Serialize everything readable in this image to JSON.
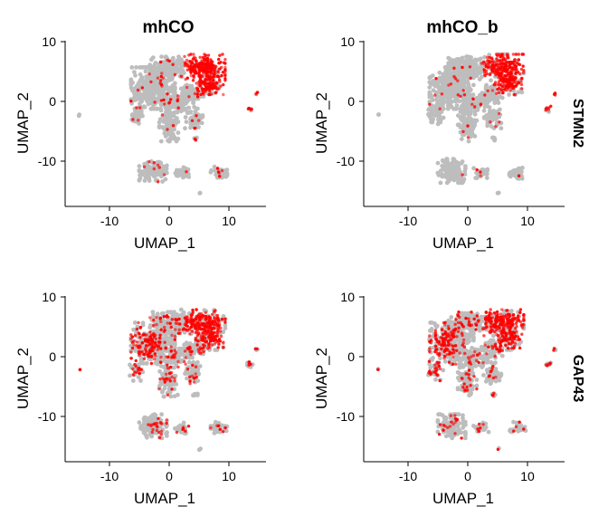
{
  "colors": {
    "background": "#ffffff",
    "cell_low": "#bdbdbd",
    "cell_high": "#ff0000",
    "axis": "#000000"
  },
  "chart_data": {
    "type": "scatter",
    "layout": "grid 2x2 (UMAP feature plots)",
    "columns": [
      "mhCO",
      "mhCO_b"
    ],
    "rows": [
      "STMN2",
      "GAP43"
    ],
    "xlabel": "UMAP_1",
    "ylabel": "UMAP_2",
    "x_ticks": [
      -10,
      0,
      10
    ],
    "y_ticks": [
      -10,
      0,
      10
    ],
    "xlim": [
      -17.5,
      14.5
    ],
    "ylim": [
      -17.5,
      10.5
    ],
    "color_scale": [
      "#bdbdbd",
      "#ff0000"
    ],
    "clusters": [
      {
        "name": "central mass",
        "cx": -3.5,
        "cy": 2.5,
        "rx": 3.5,
        "ry": 3.5,
        "n": 360
      },
      {
        "name": "upper arc",
        "cx": -1.0,
        "cy": 6.0,
        "rx": 3.0,
        "ry": 1.8,
        "n": 140
      },
      {
        "name": "top right lobe",
        "cx": 4.5,
        "cy": 6.0,
        "rx": 3.5,
        "ry": 2.2,
        "n": 240
      },
      {
        "name": "right lobe",
        "cx": 5.5,
        "cy": 3.2,
        "rx": 2.2,
        "ry": 1.8,
        "n": 110
      },
      {
        "name": "middle right",
        "cx": 2.8,
        "cy": 1.5,
        "rx": 1.8,
        "ry": 1.5,
        "n": 60
      },
      {
        "name": "center stream",
        "cx": 0.0,
        "cy": 0.0,
        "rx": 2.2,
        "ry": 1.6,
        "n": 90
      },
      {
        "name": "lower arm",
        "cx": -1.0,
        "cy": -4.0,
        "rx": 1.5,
        "ry": 2.5,
        "n": 90
      },
      {
        "name": "lower right arm",
        "cx": 3.0,
        "cy": -2.5,
        "rx": 1.4,
        "ry": 1.8,
        "n": 60
      },
      {
        "name": "left arm",
        "cx": -6.0,
        "cy": -2.0,
        "rx": 1.2,
        "ry": 1.8,
        "n": 40
      },
      {
        "name": "bottom left blob",
        "cx": -3.5,
        "cy": -11.5,
        "rx": 2.2,
        "ry": 2.0,
        "n": 120
      },
      {
        "name": "bottom mid blob",
        "cx": 1.2,
        "cy": -11.8,
        "rx": 1.2,
        "ry": 0.9,
        "n": 35
      },
      {
        "name": "bottom right blob",
        "cx": 7.0,
        "cy": -11.8,
        "rx": 1.3,
        "ry": 1.0,
        "n": 35
      },
      {
        "name": "far right dot",
        "cx": 12.0,
        "cy": -1.0,
        "rx": 0.5,
        "ry": 0.5,
        "n": 10
      },
      {
        "name": "far right small",
        "cx": 13.0,
        "cy": 1.5,
        "rx": 0.3,
        "ry": 0.3,
        "n": 4
      },
      {
        "name": "lower mid spot",
        "cx": 3.2,
        "cy": -6.0,
        "rx": 0.4,
        "ry": 0.4,
        "n": 6
      },
      {
        "name": "far left point",
        "cx": -15.2,
        "cy": -2.0,
        "rx": 0.2,
        "ry": 0.2,
        "n": 2
      },
      {
        "name": "bottom single",
        "cx": 4.0,
        "cy": -15.3,
        "rx": 0.2,
        "ry": 0.2,
        "n": 2
      }
    ]
  }
}
